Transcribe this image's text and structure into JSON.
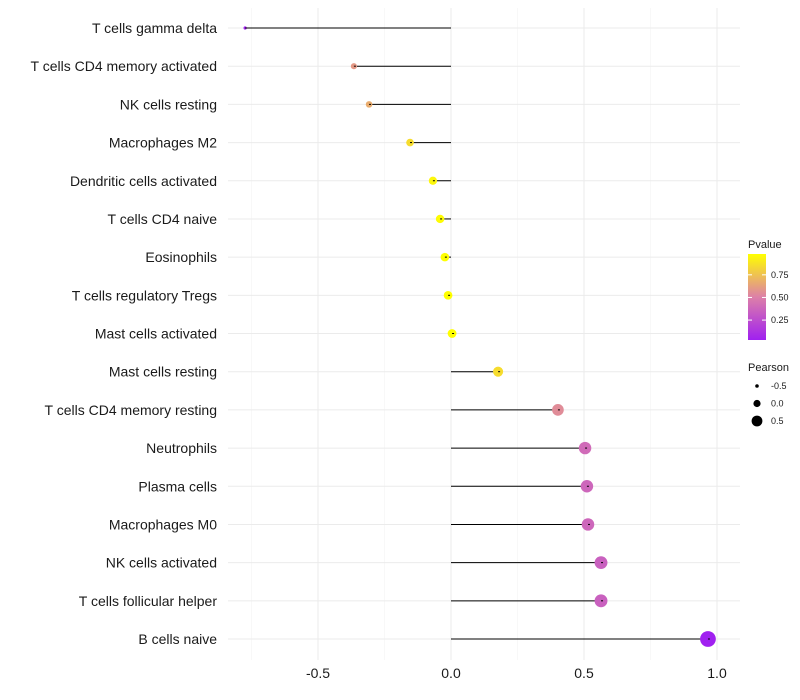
{
  "chart_data": {
    "type": "lollipop",
    "title": "",
    "xlabel": "",
    "ylabel": "",
    "xlim": [
      -0.8,
      1.05
    ],
    "x_ticks": [
      "-0.5",
      "0.0",
      "0.5",
      "1.0"
    ],
    "x_tick_values": [
      -0.5,
      0.0,
      0.5,
      1.0
    ],
    "grid": true,
    "categories": [
      "T cells gamma delta",
      "T cells CD4 memory activated",
      "NK cells resting",
      "Macrophages M2",
      "Dendritic cells activated",
      "T cells CD4 naive",
      "Eosinophils",
      "T cells regulatory  Tregs",
      "Mast cells activated",
      "Mast cells resting",
      "T cells CD4 memory resting",
      "Neutrophils",
      "Plasma cells",
      "Macrophages M0",
      "NK cells activated",
      "T cells follicular helper",
      "B cells naive"
    ],
    "pearson": [
      -0.774,
      -0.365,
      -0.308,
      -0.154,
      -0.068,
      -0.041,
      -0.023,
      -0.011,
      0.004,
      0.177,
      0.402,
      0.504,
      0.511,
      0.515,
      0.564,
      0.564,
      0.966
    ],
    "pvalue": [
      0.03,
      0.6,
      0.67,
      0.85,
      0.95,
      0.97,
      0.98,
      0.98,
      0.98,
      0.85,
      0.55,
      0.4,
      0.38,
      0.38,
      0.35,
      0.35,
      0.03
    ],
    "legend_color": {
      "title": "Pvalue",
      "labels": [
        "0.75",
        "0.50",
        "0.25"
      ],
      "values": [
        0.75,
        0.5,
        0.25
      ],
      "range": [
        0.03,
        0.98
      ],
      "low_color": "#A020F0",
      "mid_color": "#DD80A8",
      "high_color": "#FFFF00",
      "position": "right"
    },
    "legend_size": {
      "title": "Pearson",
      "labels": [
        "-0.5",
        "0.0",
        "0.5"
      ],
      "values": [
        -0.5,
        0.0,
        0.5
      ],
      "position": "right"
    }
  }
}
